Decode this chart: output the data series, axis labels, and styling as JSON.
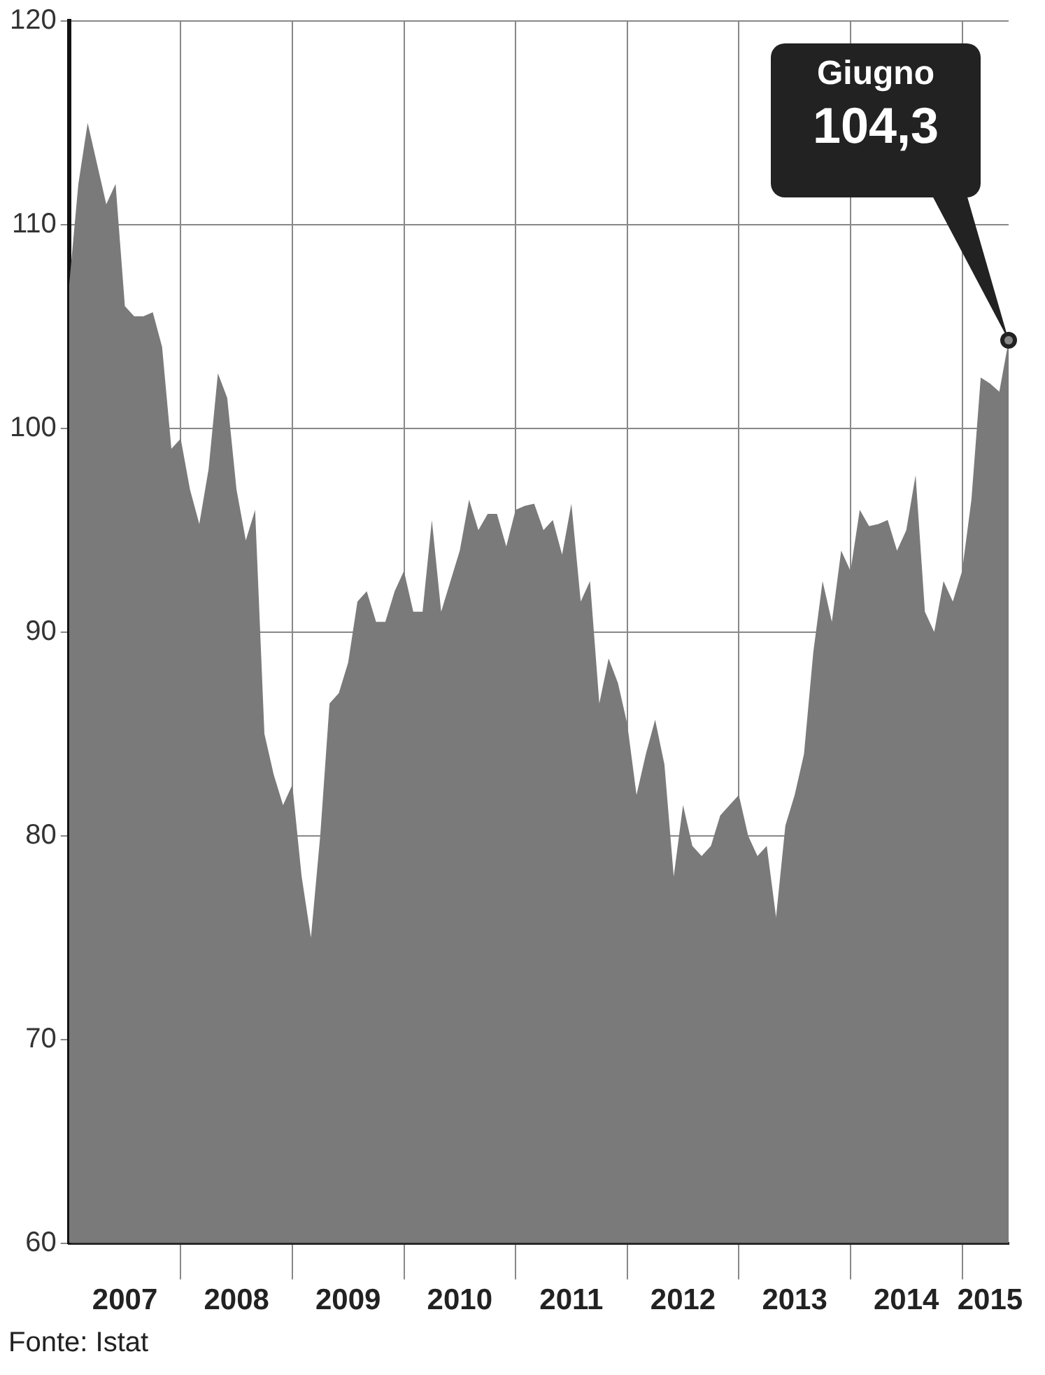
{
  "chart_data": {
    "type": "area",
    "x": [
      "2007-01",
      "2007-02",
      "2007-03",
      "2007-04",
      "2007-05",
      "2007-06",
      "2007-07",
      "2007-08",
      "2007-09",
      "2007-10",
      "2007-11",
      "2007-12",
      "2008-01",
      "2008-02",
      "2008-03",
      "2008-04",
      "2008-05",
      "2008-06",
      "2008-07",
      "2008-08",
      "2008-09",
      "2008-10",
      "2008-11",
      "2008-12",
      "2009-01",
      "2009-02",
      "2009-03",
      "2009-04",
      "2009-05",
      "2009-06",
      "2009-07",
      "2009-08",
      "2009-09",
      "2009-10",
      "2009-11",
      "2009-12",
      "2010-01",
      "2010-02",
      "2010-03",
      "2010-04",
      "2010-05",
      "2010-06",
      "2010-07",
      "2010-08",
      "2010-09",
      "2010-10",
      "2010-11",
      "2010-12",
      "2011-01",
      "2011-02",
      "2011-03",
      "2011-04",
      "2011-05",
      "2011-06",
      "2011-07",
      "2011-08",
      "2011-09",
      "2011-10",
      "2011-11",
      "2011-12",
      "2012-01",
      "2012-02",
      "2012-03",
      "2012-04",
      "2012-05",
      "2012-06",
      "2012-07",
      "2012-08",
      "2012-09",
      "2012-10",
      "2012-11",
      "2012-12",
      "2013-01",
      "2013-02",
      "2013-03",
      "2013-04",
      "2013-05",
      "2013-06",
      "2013-07",
      "2013-08",
      "2013-09",
      "2013-10",
      "2013-11",
      "2013-12",
      "2014-01",
      "2014-02",
      "2014-03",
      "2014-04",
      "2014-05",
      "2014-06",
      "2014-07",
      "2014-08",
      "2014-09",
      "2014-10",
      "2014-11",
      "2014-12",
      "2015-01",
      "2015-02",
      "2015-03",
      "2015-04",
      "2015-05",
      "2015-06"
    ],
    "series": [
      {
        "color": "#7a7a7a",
        "values": [
          107,
          112,
          115,
          113,
          111,
          112,
          106,
          105.5,
          105.5,
          105.7,
          104,
          99,
          99.5,
          97,
          95.3,
          98,
          102.7,
          101.5,
          97,
          94.5,
          96,
          85,
          83,
          81.5,
          82.5,
          78,
          75,
          80,
          86.5,
          87,
          88.5,
          91.5,
          92,
          90.5,
          90.5,
          92,
          93,
          91,
          91,
          95.5,
          91,
          92.5,
          94,
          96.5,
          95,
          95.8,
          95.8,
          94.2,
          96,
          96.2,
          96.3,
          95,
          95.5,
          93.8,
          96.3,
          91.5,
          92.5,
          86.5,
          88.7,
          87.5,
          85.5,
          82,
          84,
          85.7,
          83.5,
          78,
          81.5,
          79.5,
          79,
          79.5,
          81,
          81.5,
          82,
          80,
          79,
          79.5,
          76,
          80.5,
          82,
          84,
          89,
          92.5,
          90.5,
          94,
          93,
          96,
          95.2,
          95.3,
          95.5,
          94,
          95,
          97.7,
          91,
          90,
          92.5,
          91.5,
          93,
          96.5,
          102.5,
          102.2,
          101.8,
          104.3
        ]
      }
    ],
    "xlim": [
      "2007-01",
      "2015-06"
    ],
    "xticks": [
      {
        "value": "2007-07",
        "label": "2007"
      },
      {
        "value": "2008-01",
        "label": null
      },
      {
        "value": "2008-07",
        "label": "2008"
      },
      {
        "value": "2009-01",
        "label": null
      },
      {
        "value": "2009-07",
        "label": "2009"
      },
      {
        "value": "2010-01",
        "label": null
      },
      {
        "value": "2010-07",
        "label": "2010"
      },
      {
        "value": "2011-01",
        "label": null
      },
      {
        "value": "2011-07",
        "label": "2011"
      },
      {
        "value": "2012-01",
        "label": null
      },
      {
        "value": "2012-07",
        "label": "2012"
      },
      {
        "value": "2013-01",
        "label": null
      },
      {
        "value": "2013-07",
        "label": "2013"
      },
      {
        "value": "2014-01",
        "label": null
      },
      {
        "value": "2014-07",
        "label": "2014"
      },
      {
        "value": "2015-01",
        "label": null
      },
      {
        "value": "2015-04",
        "label": "2015"
      }
    ],
    "ylim": [
      60,
      120
    ],
    "yticks": [
      60,
      70,
      80,
      90,
      100,
      110,
      120
    ],
    "grid": true,
    "legend": false,
    "annotations": [
      "Giugno\n104,3",
      "Fonte: Istat"
    ]
  }
}
